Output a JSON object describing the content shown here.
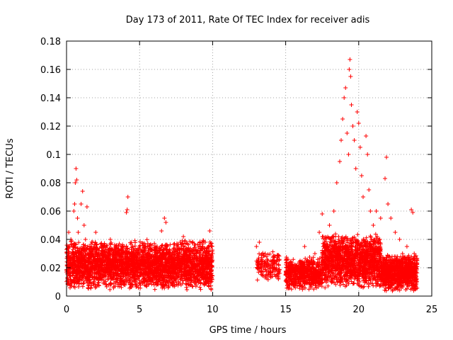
{
  "chart_data": {
    "type": "scatter",
    "title": "Day 173 of 2011, Rate Of TEC Index for receiver adis",
    "xlabel": "GPS time / hours",
    "ylabel": "ROTI / TECUs",
    "xlim": [
      0,
      25
    ],
    "ylim": [
      0,
      0.18
    ],
    "xticks": [
      {
        "value": 0,
        "label": "0"
      },
      {
        "value": 5,
        "label": "5"
      },
      {
        "value": 10,
        "label": "10"
      },
      {
        "value": 15,
        "label": "15"
      },
      {
        "value": 20,
        "label": "20"
      },
      {
        "value": 25,
        "label": "25"
      }
    ],
    "yticks": [
      {
        "value": 0,
        "label": "0"
      },
      {
        "value": 0.02,
        "label": "0.02"
      },
      {
        "value": 0.04,
        "label": "0.04"
      },
      {
        "value": 0.06,
        "label": "0.06"
      },
      {
        "value": 0.08,
        "label": "0.08"
      },
      {
        "value": 0.1,
        "label": "0.1"
      },
      {
        "value": 0.12,
        "label": "0.12"
      },
      {
        "value": 0.14,
        "label": "0.14"
      },
      {
        "value": 0.16,
        "label": "0.16"
      },
      {
        "value": 0.18,
        "label": "0.18"
      }
    ],
    "grid": true,
    "marker": "+",
    "marker_color": "#ff0000",
    "series": [
      {
        "points": [
          [
            0.0,
            0.018
          ],
          [
            0.1,
            0.03
          ],
          [
            0.15,
            0.045
          ],
          [
            0.2,
            0.025
          ],
          [
            0.3,
            0.04
          ],
          [
            0.4,
            0.022
          ],
          [
            0.5,
            0.06
          ],
          [
            0.55,
            0.065
          ],
          [
            0.6,
            0.08
          ],
          [
            0.65,
            0.09
          ],
          [
            0.7,
            0.082
          ],
          [
            0.75,
            0.055
          ],
          [
            0.8,
            0.045
          ],
          [
            0.9,
            0.03
          ],
          [
            1.0,
            0.065
          ],
          [
            1.1,
            0.074
          ],
          [
            1.2,
            0.05
          ],
          [
            1.3,
            0.04
          ],
          [
            1.4,
            0.063
          ],
          [
            1.5,
            0.025
          ],
          [
            1.7,
            0.03
          ],
          [
            1.9,
            0.02
          ],
          [
            2.0,
            0.045
          ],
          [
            2.2,
            0.025
          ],
          [
            2.5,
            0.035
          ],
          [
            2.7,
            0.028
          ],
          [
            3.0,
            0.04
          ],
          [
            3.2,
            0.024
          ],
          [
            3.5,
            0.03
          ],
          [
            3.8,
            0.035
          ],
          [
            4.0,
            0.022
          ],
          [
            4.1,
            0.059
          ],
          [
            4.15,
            0.061
          ],
          [
            4.2,
            0.07
          ],
          [
            4.4,
            0.025
          ],
          [
            4.6,
            0.03
          ],
          [
            4.8,
            0.018
          ],
          [
            5.0,
            0.035
          ],
          [
            5.2,
            0.025
          ],
          [
            5.5,
            0.03
          ],
          [
            5.8,
            0.012
          ],
          [
            6.0,
            0.028
          ],
          [
            6.2,
            0.035
          ],
          [
            6.5,
            0.046
          ],
          [
            6.7,
            0.055
          ],
          [
            6.8,
            0.052
          ],
          [
            7.0,
            0.03
          ],
          [
            7.3,
            0.025
          ],
          [
            7.6,
            0.035
          ],
          [
            8.0,
            0.042
          ],
          [
            8.2,
            0.028
          ],
          [
            8.5,
            0.03
          ],
          [
            8.8,
            0.036
          ],
          [
            9.0,
            0.025
          ],
          [
            9.2,
            0.032
          ],
          [
            9.5,
            0.038
          ],
          [
            9.8,
            0.046
          ],
          [
            10.0,
            0.03
          ],
          [
            13.0,
            0.035
          ],
          [
            13.2,
            0.038
          ],
          [
            13.4,
            0.025
          ],
          [
            13.6,
            0.03
          ],
          [
            13.8,
            0.02
          ],
          [
            14.0,
            0.015
          ],
          [
            14.3,
            0.018
          ],
          [
            14.5,
            0.012
          ],
          [
            15.0,
            0.015
          ],
          [
            15.3,
            0.02
          ],
          [
            15.6,
            0.012
          ],
          [
            16.0,
            0.022
          ],
          [
            16.3,
            0.035
          ],
          [
            16.5,
            0.025
          ],
          [
            16.8,
            0.02
          ],
          [
            17.0,
            0.03
          ],
          [
            17.3,
            0.045
          ],
          [
            17.5,
            0.058
          ],
          [
            17.7,
            0.04
          ],
          [
            18.0,
            0.05
          ],
          [
            18.3,
            0.06
          ],
          [
            18.5,
            0.08
          ],
          [
            18.7,
            0.095
          ],
          [
            18.8,
            0.11
          ],
          [
            18.9,
            0.125
          ],
          [
            19.0,
            0.14
          ],
          [
            19.1,
            0.147
          ],
          [
            19.2,
            0.115
          ],
          [
            19.3,
            0.1
          ],
          [
            19.35,
            0.16
          ],
          [
            19.4,
            0.167
          ],
          [
            19.45,
            0.155
          ],
          [
            19.5,
            0.135
          ],
          [
            19.6,
            0.12
          ],
          [
            19.7,
            0.11
          ],
          [
            19.8,
            0.09
          ],
          [
            19.9,
            0.13
          ],
          [
            20.0,
            0.122
          ],
          [
            20.1,
            0.105
          ],
          [
            20.2,
            0.085
          ],
          [
            20.3,
            0.07
          ],
          [
            20.5,
            0.113
          ],
          [
            20.6,
            0.1
          ],
          [
            20.7,
            0.075
          ],
          [
            20.8,
            0.06
          ],
          [
            21.0,
            0.05
          ],
          [
            21.2,
            0.06
          ],
          [
            21.5,
            0.055
          ],
          [
            21.8,
            0.083
          ],
          [
            21.9,
            0.098
          ],
          [
            22.0,
            0.065
          ],
          [
            22.2,
            0.055
          ],
          [
            22.5,
            0.045
          ],
          [
            22.8,
            0.04
          ],
          [
            23.0,
            0.03
          ],
          [
            23.3,
            0.035
          ],
          [
            23.6,
            0.061
          ],
          [
            23.7,
            0.059
          ],
          [
            23.8,
            0.03
          ],
          [
            24.0,
            0.025
          ]
        ],
        "band": [
          {
            "x0": 0.0,
            "x1": 10.0,
            "ymin": 0.004,
            "ymax": 0.04,
            "count": 3200
          },
          {
            "x0": 13.0,
            "x1": 14.6,
            "ymin": 0.01,
            "ymax": 0.032,
            "count": 150
          },
          {
            "x0": 15.0,
            "x1": 17.5,
            "ymin": 0.004,
            "ymax": 0.028,
            "count": 600
          },
          {
            "x0": 17.5,
            "x1": 21.5,
            "ymin": 0.005,
            "ymax": 0.045,
            "count": 1400
          },
          {
            "x0": 21.5,
            "x1": 24.0,
            "ymin": 0.003,
            "ymax": 0.03,
            "count": 900
          }
        ]
      }
    ]
  }
}
